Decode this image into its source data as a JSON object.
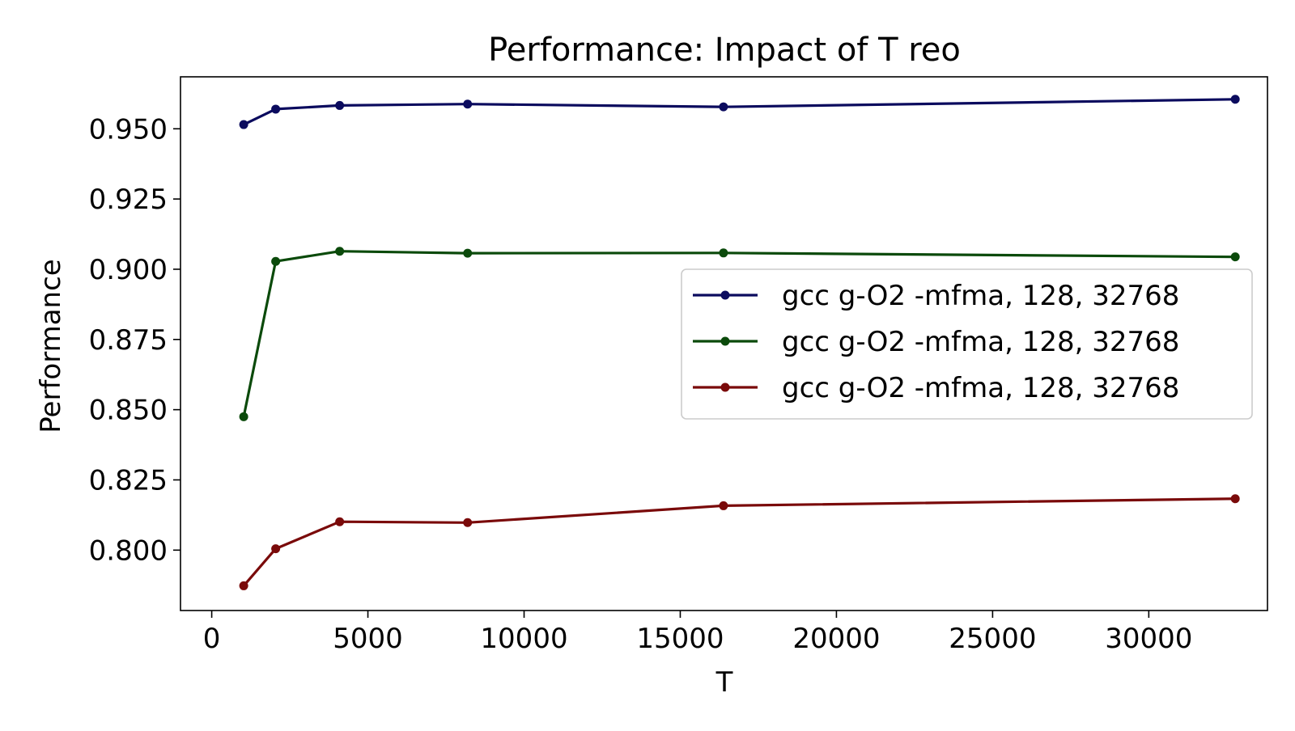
{
  "chart_data": {
    "type": "line",
    "title": "Performance: Impact of T reo",
    "xlabel": "T",
    "ylabel": "Performance",
    "xlim": [
      -1000,
      33800
    ],
    "ylim": [
      0.7785,
      0.9685
    ],
    "xticks": [
      0,
      5000,
      10000,
      15000,
      20000,
      25000,
      30000
    ],
    "xtick_labels": [
      "0",
      "5000",
      "10000",
      "15000",
      "20000",
      "25000",
      "30000"
    ],
    "yticks": [
      0.8,
      0.825,
      0.85,
      0.875,
      0.9,
      0.925,
      0.95
    ],
    "ytick_labels": [
      "0.800",
      "0.825",
      "0.850",
      "0.875",
      "0.900",
      "0.925",
      "0.950"
    ],
    "grid": false,
    "legend_position": "center-right",
    "x": [
      1024,
      2048,
      4096,
      8192,
      16384,
      32768
    ],
    "series": [
      {
        "name": "gcc g-O2 -mfma, 128, 32768",
        "color": "#0b0b5e",
        "values": [
          0.9515,
          0.957,
          0.9583,
          0.9588,
          0.9578,
          0.9605
        ]
      },
      {
        "name": "gcc g-O2 -mfma, 128, 32768",
        "color": "#0b4a0b",
        "values": [
          0.8475,
          0.9028,
          0.9064,
          0.9057,
          0.9058,
          0.9044
        ]
      },
      {
        "name": "gcc g-O2 -mfma, 128, 32768",
        "color": "#7a0a0a",
        "values": [
          0.7873,
          0.8005,
          0.8101,
          0.8098,
          0.8158,
          0.8183
        ]
      }
    ]
  }
}
